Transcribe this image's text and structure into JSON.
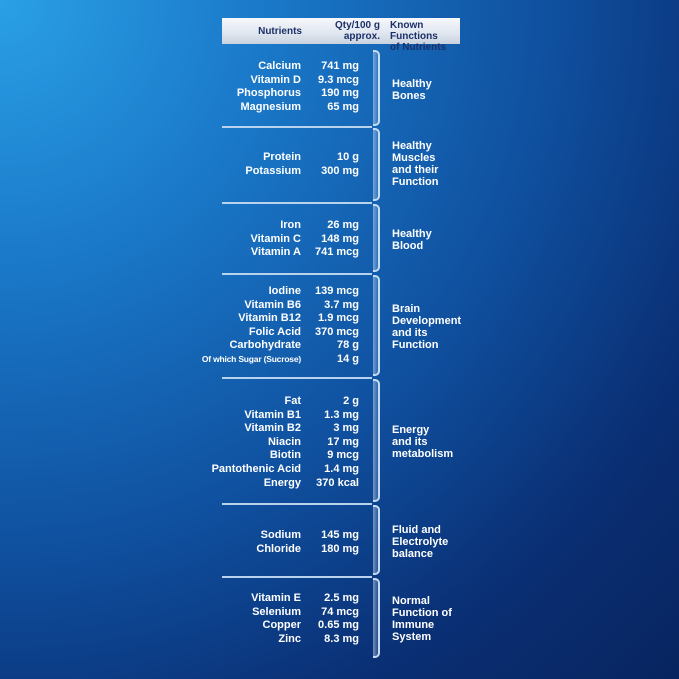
{
  "header": {
    "nutrients": "Nutrients",
    "qty": "Qty/100 g\napprox.",
    "functions": "Known Functions\nof Nutrients"
  },
  "groups": [
    {
      "function": "Healthy\nBones",
      "rows": [
        {
          "name": "Calcium",
          "qty": "741 mg"
        },
        {
          "name": "Vitamin D",
          "qty": "9.3 mcg"
        },
        {
          "name": "Phosphorus",
          "qty": "190 mg"
        },
        {
          "name": "Magnesium",
          "qty": "65 mg"
        }
      ]
    },
    {
      "function": "Healthy\nMuscles\nand their\nFunction",
      "rows": [
        {
          "name": "Protein",
          "qty": "10 g"
        },
        {
          "name": "Potassium",
          "qty": "300 mg"
        }
      ]
    },
    {
      "function": "Healthy\nBlood",
      "rows": [
        {
          "name": "Iron",
          "qty": "26 mg"
        },
        {
          "name": "Vitamin C",
          "qty": "148 mg"
        },
        {
          "name": "Vitamin A",
          "qty": "741 mcg"
        }
      ]
    },
    {
      "function": "Brain\nDevelopment\nand its\nFunction",
      "rows": [
        {
          "name": "Iodine",
          "qty": "139 mcg"
        },
        {
          "name": "Vitamin B6",
          "qty": "3.7 mg"
        },
        {
          "name": "Vitamin B12",
          "qty": "1.9 mcg"
        },
        {
          "name": "Folic Acid",
          "qty": "370 mcg"
        },
        {
          "name": "Carbohydrate",
          "qty": "78 g"
        },
        {
          "name": "Of which Sugar (Sucrose)",
          "qty": "14 g"
        }
      ]
    },
    {
      "function": "Energy\nand its\nmetabolism",
      "rows": [
        {
          "name": "Fat",
          "qty": "2 g"
        },
        {
          "name": "Vitamin B1",
          "qty": "1.3 mg"
        },
        {
          "name": "Vitamin B2",
          "qty": "3 mg"
        },
        {
          "name": "Niacin",
          "qty": "17 mg"
        },
        {
          "name": "Biotin",
          "qty": "9 mcg"
        },
        {
          "name": "Pantothenic Acid",
          "qty": "1.4 mg"
        },
        {
          "name": "Energy",
          "qty": "370 kcal"
        }
      ]
    },
    {
      "function": "Fluid and\nElectrolyte\nbalance",
      "rows": [
        {
          "name": "Sodium",
          "qty": "145 mg"
        },
        {
          "name": "Chloride",
          "qty": "180 mg"
        }
      ]
    },
    {
      "function": "Normal\nFunction of\nImmune\nSystem",
      "rows": [
        {
          "name": "Vitamin E",
          "qty": "2.5 mg"
        },
        {
          "name": "Selenium",
          "qty": "74 mcg"
        },
        {
          "name": "Copper",
          "qty": "0.65 mg"
        },
        {
          "name": "Zinc",
          "qty": "8.3 mg"
        }
      ]
    }
  ]
}
